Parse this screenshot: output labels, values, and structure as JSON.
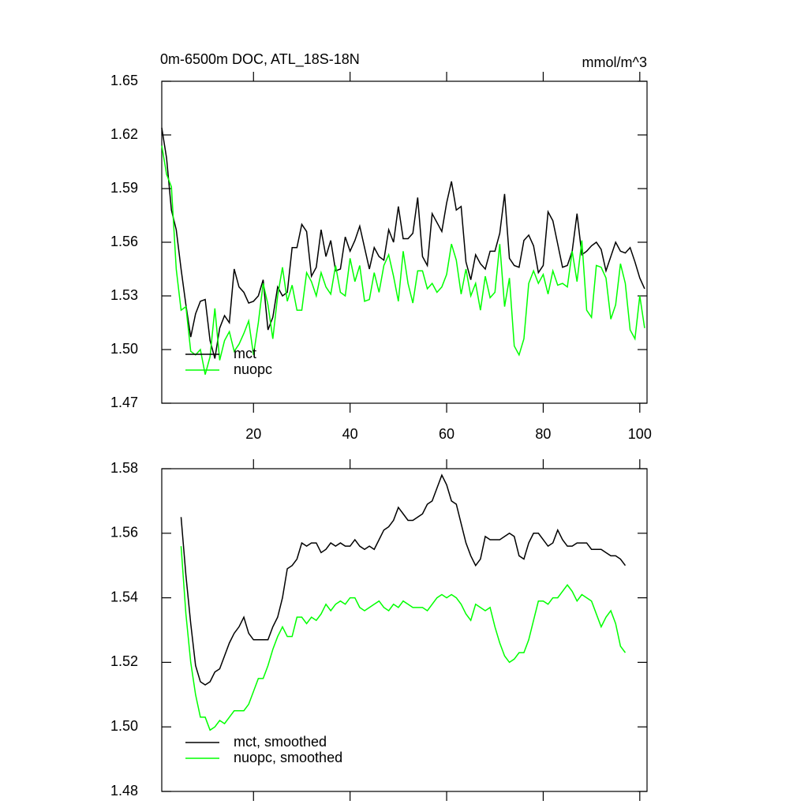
{
  "chart_data": [
    {
      "type": "line",
      "title": "0m-6500m DOC, ATL_18S-18N",
      "units_label": "mmol/m^3",
      "x": [
        1,
        2,
        3,
        4,
        5,
        6,
        7,
        8,
        9,
        10,
        11,
        12,
        13,
        14,
        15,
        16,
        17,
        18,
        19,
        20,
        21,
        22,
        23,
        24,
        25,
        26,
        27,
        28,
        29,
        30,
        31,
        32,
        33,
        34,
        35,
        36,
        37,
        38,
        39,
        40,
        41,
        42,
        43,
        44,
        45,
        46,
        47,
        48,
        49,
        50,
        51,
        52,
        53,
        54,
        55,
        56,
        57,
        58,
        59,
        60,
        61,
        62,
        63,
        64,
        65,
        66,
        67,
        68,
        69,
        70,
        71,
        72,
        73,
        74,
        75,
        76,
        77,
        78,
        79,
        80,
        81,
        82,
        83,
        84,
        85,
        86,
        87,
        88,
        89,
        90,
        91,
        92,
        93,
        94,
        95,
        96,
        97,
        98,
        99,
        100,
        101
      ],
      "series": [
        {
          "name": "mct",
          "color": "#000000",
          "values": [
            1.624,
            1.607,
            1.578,
            1.567,
            1.545,
            1.525,
            1.507,
            1.52,
            1.527,
            1.528,
            1.505,
            1.495,
            1.512,
            1.519,
            1.515,
            1.545,
            1.535,
            1.532,
            1.526,
            1.527,
            1.53,
            1.539,
            1.511,
            1.518,
            1.535,
            1.53,
            1.532,
            1.557,
            1.557,
            1.57,
            1.566,
            1.541,
            1.546,
            1.567,
            1.552,
            1.561,
            1.544,
            1.545,
            1.563,
            1.555,
            1.561,
            1.569,
            1.557,
            1.545,
            1.557,
            1.552,
            1.55,
            1.567,
            1.56,
            1.58,
            1.562,
            1.562,
            1.565,
            1.585,
            1.552,
            1.547,
            1.576,
            1.571,
            1.566,
            1.582,
            1.594,
            1.578,
            1.58,
            1.549,
            1.539,
            1.553,
            1.548,
            1.545,
            1.555,
            1.555,
            1.565,
            1.587,
            1.551,
            1.547,
            1.546,
            1.561,
            1.564,
            1.558,
            1.543,
            1.547,
            1.577,
            1.572,
            1.559,
            1.546,
            1.547,
            1.555,
            1.576,
            1.553,
            1.555,
            1.558,
            1.56,
            1.556,
            1.544,
            1.552,
            1.56,
            1.555,
            1.554,
            1.557,
            1.549,
            1.54,
            1.534
          ]
        },
        {
          "name": "nuopc",
          "color": "#00ff00",
          "values": [
            1.614,
            1.598,
            1.591,
            1.545,
            1.522,
            1.524,
            1.499,
            1.497,
            1.5,
            1.486,
            1.496,
            1.523,
            1.494,
            1.505,
            1.51,
            1.499,
            1.503,
            1.509,
            1.516,
            1.497,
            1.515,
            1.537,
            1.525,
            1.506,
            1.53,
            1.546,
            1.527,
            1.536,
            1.522,
            1.522,
            1.543,
            1.538,
            1.53,
            1.543,
            1.535,
            1.531,
            1.547,
            1.532,
            1.53,
            1.551,
            1.538,
            1.547,
            1.527,
            1.528,
            1.543,
            1.532,
            1.547,
            1.553,
            1.541,
            1.527,
            1.555,
            1.537,
            1.526,
            1.544,
            1.544,
            1.534,
            1.537,
            1.532,
            1.535,
            1.542,
            1.559,
            1.55,
            1.531,
            1.545,
            1.53,
            1.537,
            1.522,
            1.541,
            1.529,
            1.532,
            1.559,
            1.524,
            1.54,
            1.502,
            1.497,
            1.506,
            1.537,
            1.544,
            1.537,
            1.542,
            1.531,
            1.544,
            1.536,
            1.537,
            1.535,
            1.555,
            1.538,
            1.561,
            1.522,
            1.518,
            1.547,
            1.546,
            1.54,
            1.517,
            1.525,
            1.548,
            1.537,
            1.511,
            1.506,
            1.53,
            1.512
          ]
        }
      ],
      "xlim": [
        1,
        101.5
      ],
      "ylim": [
        1.47,
        1.65
      ],
      "xticks": [
        20,
        40,
        60,
        80,
        100
      ],
      "xtick_labels": true,
      "yticks": [
        1.47,
        {
          "value": 1.5,
          "label": "1.50"
        },
        1.53,
        1.56,
        1.59,
        1.62,
        1.65
      ],
      "legend": "lower left"
    },
    {
      "type": "line",
      "x": [
        5,
        6,
        7,
        8,
        9,
        10,
        11,
        12,
        13,
        14,
        15,
        16,
        17,
        18,
        19,
        20,
        21,
        22,
        23,
        24,
        25,
        26,
        27,
        28,
        29,
        30,
        31,
        32,
        33,
        34,
        35,
        36,
        37,
        38,
        39,
        40,
        41,
        42,
        43,
        44,
        45,
        46,
        47,
        48,
        49,
        50,
        51,
        52,
        53,
        54,
        55,
        56,
        57,
        58,
        59,
        60,
        61,
        62,
        63,
        64,
        65,
        66,
        67,
        68,
        69,
        70,
        71,
        72,
        73,
        74,
        75,
        76,
        77,
        78,
        79,
        80,
        81,
        82,
        83,
        84,
        85,
        86,
        87,
        88,
        89,
        90,
        91,
        92,
        93,
        94,
        95,
        96,
        97
      ],
      "series": [
        {
          "name": "mct, smoothed",
          "color": "#000000",
          "values": [
            1.565,
            1.547,
            1.532,
            1.519,
            1.514,
            1.513,
            1.514,
            1.517,
            1.518,
            1.522,
            1.526,
            1.529,
            1.531,
            1.534,
            1.529,
            1.527,
            1.527,
            1.527,
            1.527,
            1.531,
            1.534,
            1.54,
            1.549,
            1.55,
            1.552,
            1.557,
            1.556,
            1.557,
            1.557,
            1.554,
            1.555,
            1.557,
            1.556,
            1.557,
            1.556,
            1.556,
            1.558,
            1.556,
            1.555,
            1.556,
            1.555,
            1.558,
            1.561,
            1.562,
            1.564,
            1.568,
            1.566,
            1.564,
            1.564,
            1.565,
            1.566,
            1.569,
            1.57,
            1.574,
            1.578,
            1.575,
            1.57,
            1.569,
            1.563,
            1.557,
            1.553,
            1.55,
            1.552,
            1.559,
            1.558,
            1.558,
            1.558,
            1.559,
            1.56,
            1.559,
            1.553,
            1.552,
            1.557,
            1.56,
            1.56,
            1.558,
            1.556,
            1.557,
            1.561,
            1.558,
            1.556,
            1.556,
            1.557,
            1.557,
            1.557,
            1.555,
            1.555,
            1.555,
            1.554,
            1.553,
            1.553,
            1.552,
            1.55
          ]
        },
        {
          "name": "nuopc, smoothed",
          "color": "#00ff00",
          "values": [
            1.556,
            1.535,
            1.52,
            1.51,
            1.503,
            1.503,
            1.499,
            1.5,
            1.502,
            1.501,
            1.503,
            1.505,
            1.505,
            1.505,
            1.507,
            1.511,
            1.515,
            1.515,
            1.519,
            1.524,
            1.528,
            1.531,
            1.528,
            1.528,
            1.534,
            1.534,
            1.532,
            1.534,
            1.533,
            1.535,
            1.538,
            1.536,
            1.538,
            1.539,
            1.538,
            1.54,
            1.54,
            1.537,
            1.536,
            1.537,
            1.538,
            1.539,
            1.537,
            1.536,
            1.538,
            1.537,
            1.539,
            1.538,
            1.537,
            1.537,
            1.537,
            1.536,
            1.538,
            1.54,
            1.541,
            1.54,
            1.541,
            1.54,
            1.538,
            1.535,
            1.533,
            1.538,
            1.537,
            1.536,
            1.537,
            1.531,
            1.526,
            1.522,
            1.52,
            1.521,
            1.523,
            1.523,
            1.527,
            1.533,
            1.539,
            1.539,
            1.538,
            1.54,
            1.54,
            1.542,
            1.544,
            1.542,
            1.539,
            1.541,
            1.54,
            1.539,
            1.535,
            1.531,
            1.534,
            1.536,
            1.532,
            1.525,
            1.523
          ]
        }
      ],
      "xlim": [
        1,
        101.5
      ],
      "ylim": [
        1.48,
        1.58
      ],
      "xticks": [
        20,
        40,
        60,
        80,
        100
      ],
      "xtick_labels": false,
      "yticks": [
        1.48,
        {
          "value": 1.5,
          "label": "1.50"
        },
        1.52,
        1.54,
        1.56,
        1.58
      ],
      "legend": "lower left"
    }
  ]
}
